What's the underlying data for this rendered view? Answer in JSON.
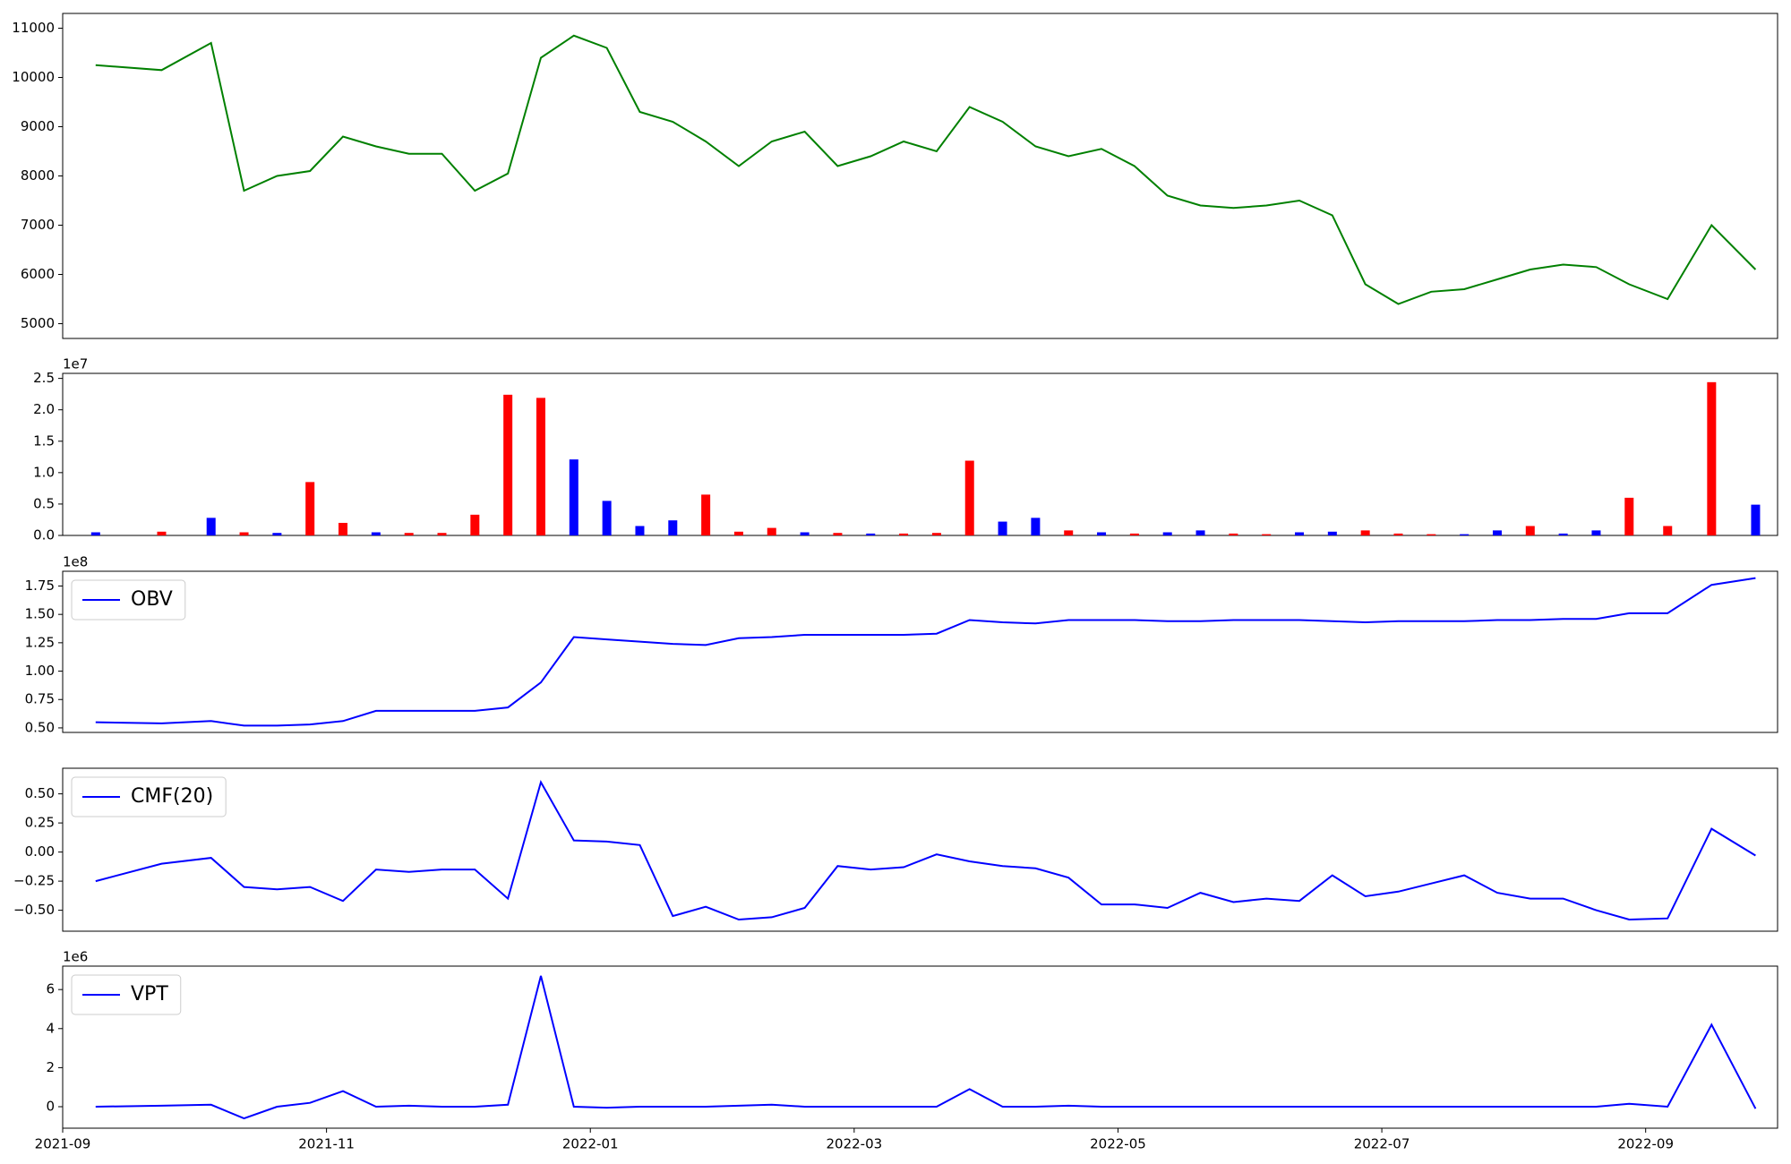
{
  "chart_data": [
    {
      "type": "line",
      "color": "green",
      "x": [
        "2021-09",
        "2021-09",
        "2021-10",
        "2021-10",
        "2021-10",
        "2021-10",
        "2021-11",
        "2021-11",
        "2021-11",
        "2021-11",
        "2021-12",
        "2021-12",
        "2021-12",
        "2021-12",
        "2022-01",
        "2022-01",
        "2022-01",
        "2022-01",
        "2022-02",
        "2022-02",
        "2022-02",
        "2022-02",
        "2022-03",
        "2022-03",
        "2022-03",
        "2022-03",
        "2022-04",
        "2022-04",
        "2022-04",
        "2022-04",
        "2022-05",
        "2022-05",
        "2022-05",
        "2022-05",
        "2022-06",
        "2022-06",
        "2022-06",
        "2022-06",
        "2022-07",
        "2022-07",
        "2022-07",
        "2022-07",
        "2022-08",
        "2022-08",
        "2022-08",
        "2022-08",
        "2022-09",
        "2022-09",
        "2022-09"
      ],
      "values": [
        10250,
        10150,
        10700,
        7700,
        8000,
        8100,
        8800,
        8600,
        8450,
        8450,
        7700,
        8050,
        10400,
        10850,
        10600,
        9300,
        9100,
        8700,
        8200,
        8700,
        8900,
        8200,
        8400,
        8700,
        8500,
        9400,
        9100,
        8600,
        8400,
        8550,
        8200,
        7600,
        7400,
        7350,
        7400,
        7500,
        7200,
        5800,
        5400,
        5650,
        5700,
        5900,
        6100,
        6200,
        6150,
        5800,
        5500,
        7000,
        6100
      ],
      "xlim": [
        "2021-09",
        "2022-10"
      ],
      "ylim": [
        4700,
        11300
      ],
      "yticks": [
        5000,
        6000,
        7000,
        8000,
        9000,
        10000,
        11000
      ]
    },
    {
      "type": "bar",
      "offset_label": "1e7",
      "x": [
        "2021-09",
        "2021-09",
        "2021-10",
        "2021-10",
        "2021-10",
        "2021-10",
        "2021-11",
        "2021-11",
        "2021-11",
        "2021-11",
        "2021-12",
        "2021-12",
        "2021-12",
        "2021-12",
        "2022-01",
        "2022-01",
        "2022-01",
        "2022-01",
        "2022-02",
        "2022-02",
        "2022-02",
        "2022-02",
        "2022-03",
        "2022-03",
        "2022-03",
        "2022-03",
        "2022-04",
        "2022-04",
        "2022-04",
        "2022-04",
        "2022-05",
        "2022-05",
        "2022-05",
        "2022-05",
        "2022-06",
        "2022-06",
        "2022-06",
        "2022-06",
        "2022-07",
        "2022-07",
        "2022-07",
        "2022-07",
        "2022-08",
        "2022-08",
        "2022-08",
        "2022-08",
        "2022-09",
        "2022-09",
        "2022-09"
      ],
      "values": [
        0.05,
        0.06,
        0.28,
        0.05,
        0.04,
        0.85,
        0.2,
        0.05,
        0.04,
        0.04,
        0.33,
        2.24,
        2.19,
        1.21,
        0.55,
        0.15,
        0.24,
        0.65,
        0.06,
        0.12,
        0.05,
        0.04,
        0.03,
        0.03,
        0.04,
        1.19,
        0.22,
        0.28,
        0.08,
        0.05,
        0.03,
        0.05,
        0.08,
        0.03,
        0.02,
        0.05,
        0.06,
        0.08,
        0.03,
        0.02,
        0.02,
        0.08,
        0.15,
        0.03,
        0.08,
        0.6,
        0.15,
        2.44,
        0.49
      ],
      "colors": [
        "blue",
        "red",
        "blue",
        "red",
        "blue",
        "red",
        "red",
        "blue",
        "red",
        "red",
        "red",
        "red",
        "red",
        "blue",
        "blue",
        "blue",
        "blue",
        "red",
        "red",
        "red",
        "blue",
        "red",
        "blue",
        "red",
        "red",
        "red",
        "blue",
        "blue",
        "red",
        "blue",
        "red",
        "blue",
        "blue",
        "red",
        "red",
        "blue",
        "blue",
        "red",
        "red",
        "red",
        "blue",
        "blue",
        "red",
        "blue",
        "blue",
        "red",
        "red",
        "red",
        "blue"
      ],
      "xlim": [
        "2021-09",
        "2022-10"
      ],
      "ylim": [
        0,
        2.58
      ],
      "yticks": [
        {
          "value": 0,
          "label": "0.0"
        },
        {
          "value": 0.5,
          "label": "0.5"
        },
        {
          "value": 1,
          "label": "1.0"
        },
        {
          "value": 1.5,
          "label": "1.5"
        },
        {
          "value": 2,
          "label": "2.0"
        },
        {
          "value": 2.5,
          "label": "2.5"
        }
      ]
    },
    {
      "type": "line",
      "offset_label": "1e8",
      "x": [
        "2021-09",
        "2021-09",
        "2021-10",
        "2021-10",
        "2021-10",
        "2021-10",
        "2021-11",
        "2021-11",
        "2021-11",
        "2021-11",
        "2021-12",
        "2021-12",
        "2021-12",
        "2021-12",
        "2022-01",
        "2022-01",
        "2022-01",
        "2022-01",
        "2022-02",
        "2022-02",
        "2022-02",
        "2022-02",
        "2022-03",
        "2022-03",
        "2022-03",
        "2022-03",
        "2022-04",
        "2022-04",
        "2022-04",
        "2022-04",
        "2022-05",
        "2022-05",
        "2022-05",
        "2022-05",
        "2022-06",
        "2022-06",
        "2022-06",
        "2022-06",
        "2022-07",
        "2022-07",
        "2022-07",
        "2022-07",
        "2022-08",
        "2022-08",
        "2022-08",
        "2022-08",
        "2022-09",
        "2022-09",
        "2022-09"
      ],
      "series": [
        {
          "name": "OBV",
          "color": "blue",
          "values": [
            0.55,
            0.54,
            0.56,
            0.52,
            0.52,
            0.53,
            0.56,
            0.65,
            0.65,
            0.65,
            0.65,
            0.68,
            0.9,
            1.3,
            1.28,
            1.26,
            1.24,
            1.23,
            1.29,
            1.3,
            1.32,
            1.32,
            1.32,
            1.32,
            1.33,
            1.45,
            1.43,
            1.42,
            1.45,
            1.45,
            1.45,
            1.44,
            1.44,
            1.45,
            1.45,
            1.45,
            1.44,
            1.43,
            1.44,
            1.44,
            1.44,
            1.45,
            1.45,
            1.46,
            1.46,
            1.51,
            1.51,
            1.76,
            1.82
          ]
        }
      ],
      "xlim": [
        "2021-09",
        "2022-10"
      ],
      "ylim": [
        0.46,
        1.88
      ],
      "yticks": [
        {
          "value": 0.5,
          "label": "0.50"
        },
        {
          "value": 0.75,
          "label": "0.75"
        },
        {
          "value": 1,
          "label": "1.00"
        },
        {
          "value": 1.25,
          "label": "1.25"
        },
        {
          "value": 1.5,
          "label": "1.50"
        },
        {
          "value": 1.75,
          "label": "1.75"
        }
      ]
    },
    {
      "type": "line",
      "x": [
        "2021-09",
        "2021-09",
        "2021-10",
        "2021-10",
        "2021-10",
        "2021-10",
        "2021-11",
        "2021-11",
        "2021-11",
        "2021-11",
        "2021-12",
        "2021-12",
        "2021-12",
        "2021-12",
        "2022-01",
        "2022-01",
        "2022-01",
        "2022-01",
        "2022-02",
        "2022-02",
        "2022-02",
        "2022-02",
        "2022-03",
        "2022-03",
        "2022-03",
        "2022-03",
        "2022-04",
        "2022-04",
        "2022-04",
        "2022-04",
        "2022-05",
        "2022-05",
        "2022-05",
        "2022-05",
        "2022-06",
        "2022-06",
        "2022-06",
        "2022-06",
        "2022-07",
        "2022-07",
        "2022-07",
        "2022-07",
        "2022-08",
        "2022-08",
        "2022-08",
        "2022-08",
        "2022-09",
        "2022-09",
        "2022-09"
      ],
      "series": [
        {
          "name": "CMF(20)",
          "color": "blue",
          "values": [
            -0.25,
            -0.1,
            -0.05,
            -0.3,
            -0.32,
            -0.3,
            -0.42,
            -0.15,
            -0.17,
            -0.15,
            -0.15,
            -0.4,
            0.6,
            0.1,
            0.09,
            0.06,
            -0.55,
            -0.47,
            -0.58,
            -0.56,
            -0.48,
            -0.12,
            -0.15,
            -0.13,
            -0.02,
            -0.08,
            -0.12,
            -0.14,
            -0.22,
            -0.45,
            -0.45,
            -0.48,
            -0.35,
            -0.43,
            -0.4,
            -0.42,
            -0.2,
            -0.38,
            -0.34,
            -0.27,
            -0.2,
            -0.35,
            -0.4,
            -0.4,
            -0.5,
            -0.58,
            -0.57,
            0.2,
            -0.03
          ]
        }
      ],
      "xlim": [
        "2021-09",
        "2022-10"
      ],
      "ylim": [
        -0.68,
        0.72
      ],
      "yticks": [
        {
          "value": -0.5,
          "label": "−0.50"
        },
        {
          "value": -0.25,
          "label": "−0.25"
        },
        {
          "value": 0,
          "label": "0.00"
        },
        {
          "value": 0.25,
          "label": "0.25"
        },
        {
          "value": 0.5,
          "label": "0.50"
        }
      ]
    },
    {
      "type": "line",
      "offset_label": "1e6",
      "x": [
        "2021-09",
        "2021-09",
        "2021-10",
        "2021-10",
        "2021-10",
        "2021-10",
        "2021-11",
        "2021-11",
        "2021-11",
        "2021-11",
        "2021-12",
        "2021-12",
        "2021-12",
        "2021-12",
        "2022-01",
        "2022-01",
        "2022-01",
        "2022-01",
        "2022-02",
        "2022-02",
        "2022-02",
        "2022-02",
        "2022-03",
        "2022-03",
        "2022-03",
        "2022-03",
        "2022-04",
        "2022-04",
        "2022-04",
        "2022-04",
        "2022-05",
        "2022-05",
        "2022-05",
        "2022-05",
        "2022-06",
        "2022-06",
        "2022-06",
        "2022-06",
        "2022-07",
        "2022-07",
        "2022-07",
        "2022-07",
        "2022-08",
        "2022-08",
        "2022-08",
        "2022-08",
        "2022-09",
        "2022-09",
        "2022-09"
      ],
      "series": [
        {
          "name": "VPT",
          "color": "blue",
          "values": [
            0,
            0.05,
            0.1,
            -0.6,
            0,
            0.2,
            0.8,
            0,
            0.05,
            0,
            0,
            0.1,
            6.7,
            0,
            -0.05,
            0,
            0,
            0,
            0.05,
            0.1,
            0,
            0,
            0,
            0,
            0,
            0.9,
            0,
            0,
            0.05,
            0,
            0,
            0,
            0,
            0,
            0,
            0,
            0,
            0,
            0,
            0,
            0,
            0,
            0,
            0,
            0,
            0.15,
            0,
            4.2,
            -0.1
          ]
        }
      ],
      "xlim": [
        "2021-09",
        "2022-10"
      ],
      "ylim": [
        -1.1,
        7.2
      ],
      "yticks": [
        0,
        2,
        4,
        6
      ],
      "xticks": [
        "2021-09",
        "2021-11",
        "2022-01",
        "2022-03",
        "2022-05",
        "2022-07",
        "2022-09"
      ]
    }
  ]
}
